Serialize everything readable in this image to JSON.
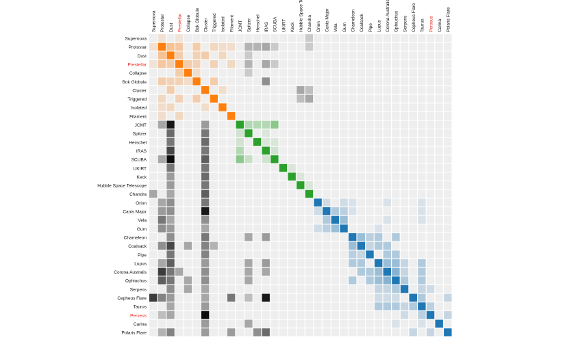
{
  "chart_data": {
    "type": "heatmap",
    "title": "",
    "labels": [
      "Supernova",
      "Protostar",
      "Dust",
      "Prestellar",
      "Collapse",
      "Bok Globule",
      "Cluster",
      "Triggered",
      "Isolated",
      "Filament",
      "JCMT",
      "Spitzer",
      "Herschel",
      "IRAS",
      "SCUBA",
      "UKIRT",
      "Keck",
      "Hubble Space Telescope",
      "Chandra",
      "Orion",
      "Canis Major",
      "Vela",
      "Gum",
      "Chameleon",
      "Coalsack",
      "Pipe",
      "Lupus",
      "Corona Australis",
      "Ophiuchus",
      "Serpens",
      "Cepheus Flare",
      "Taurus",
      "Perseus",
      "Carina",
      "Polaris Flare"
    ],
    "highlighted_labels": [
      "Prestellar",
      "Perseus"
    ],
    "groups": [
      {
        "members": [
          0,
          1,
          2,
          3,
          4,
          5,
          6,
          7,
          8,
          9
        ],
        "color": "#ff7f0e"
      },
      {
        "members": [
          10,
          11,
          12,
          13,
          14,
          15,
          16,
          17,
          18
        ],
        "color": "#2ca02c"
      },
      {
        "members": [
          19,
          20,
          21,
          22,
          23,
          24,
          25,
          26,
          27,
          28,
          29,
          30,
          31,
          32,
          33,
          34
        ],
        "color": "#1f77b4"
      }
    ],
    "other_color": "#000000",
    "empty_color": "#eeeeee",
    "max_intensity": 1,
    "cells": [
      [
        1,
        1,
        1
      ],
      [
        2,
        2,
        1
      ],
      [
        3,
        3,
        1
      ],
      [
        4,
        4,
        1
      ],
      [
        5,
        5,
        1
      ],
      [
        6,
        6,
        1
      ],
      [
        7,
        7,
        1
      ],
      [
        8,
        8,
        1
      ],
      [
        9,
        9,
        1
      ],
      [
        10,
        10,
        1
      ],
      [
        11,
        11,
        1
      ],
      [
        12,
        12,
        1
      ],
      [
        13,
        13,
        1
      ],
      [
        14,
        14,
        1
      ],
      [
        15,
        15,
        1
      ],
      [
        16,
        16,
        1
      ],
      [
        17,
        17,
        1
      ],
      [
        18,
        18,
        1
      ],
      [
        19,
        19,
        1
      ],
      [
        20,
        20,
        1
      ],
      [
        21,
        21,
        1
      ],
      [
        22,
        22,
        1
      ],
      [
        23,
        23,
        1
      ],
      [
        24,
        24,
        1
      ],
      [
        25,
        25,
        1
      ],
      [
        26,
        26,
        1
      ],
      [
        27,
        27,
        1
      ],
      [
        28,
        28,
        1
      ],
      [
        29,
        29,
        1
      ],
      [
        30,
        30,
        1
      ],
      [
        31,
        31,
        1
      ],
      [
        32,
        32,
        1
      ],
      [
        33,
        33,
        1
      ],
      [
        34,
        34,
        1
      ],
      [
        1,
        2,
        0.4
      ],
      [
        2,
        1,
        0.4
      ],
      [
        3,
        1,
        0.35
      ],
      [
        1,
        3,
        0.35
      ],
      [
        3,
        2,
        0.3
      ],
      [
        2,
        3,
        0.3
      ],
      [
        3,
        4,
        0.3
      ],
      [
        4,
        3,
        0.3
      ],
      [
        3,
        5,
        0.25
      ],
      [
        5,
        3,
        0.25
      ],
      [
        5,
        1,
        0.3
      ],
      [
        1,
        5,
        0.3
      ],
      [
        5,
        2,
        0.25
      ],
      [
        2,
        5,
        0.25
      ],
      [
        5,
        7,
        0.3
      ],
      [
        7,
        5,
        0.3
      ],
      [
        5,
        4,
        0.15
      ],
      [
        4,
        5,
        0.15
      ],
      [
        6,
        2,
        0.3
      ],
      [
        2,
        6,
        0.3
      ],
      [
        7,
        3,
        0.25
      ],
      [
        3,
        7,
        0.25
      ],
      [
        8,
        2,
        0.2
      ],
      [
        2,
        8,
        0.2
      ],
      [
        9,
        3,
        0.2
      ],
      [
        3,
        9,
        0.2
      ],
      [
        7,
        1,
        0.2
      ],
      [
        1,
        7,
        0.2
      ],
      [
        8,
        1,
        0.15
      ],
      [
        1,
        8,
        0.15
      ],
      [
        9,
        1,
        0.15
      ],
      [
        1,
        9,
        0.15
      ],
      [
        8,
        6,
        0.15
      ],
      [
        6,
        8,
        0.15
      ],
      [
        0,
        1,
        0.12
      ],
      [
        1,
        0,
        0.12
      ],
      [
        0,
        3,
        0.1
      ],
      [
        3,
        0,
        0.1
      ],
      [
        1,
        11,
        0.25
      ],
      [
        1,
        12,
        0.25
      ],
      [
        1,
        13,
        0.3
      ],
      [
        3,
        11,
        0.25
      ],
      [
        3,
        13,
        0.3
      ],
      [
        5,
        13,
        0.4
      ],
      [
        2,
        11,
        0.15
      ],
      [
        4,
        11,
        0.15
      ],
      [
        1,
        14,
        0.15
      ],
      [
        3,
        14,
        0.15
      ],
      [
        7,
        18,
        0.3
      ],
      [
        6,
        17,
        0.3
      ],
      [
        7,
        17,
        0.2
      ],
      [
        0,
        18,
        0.15
      ],
      [
        1,
        18,
        0.15
      ],
      [
        6,
        18,
        0.2
      ],
      [
        10,
        2,
        0.9
      ],
      [
        10,
        1,
        0.3
      ],
      [
        10,
        6,
        0.35
      ],
      [
        11,
        2,
        0.55
      ],
      [
        11,
        6,
        0.5
      ],
      [
        12,
        2,
        0.5
      ],
      [
        12,
        6,
        0.55
      ],
      [
        13,
        2,
        0.7
      ],
      [
        13,
        6,
        0.5
      ],
      [
        14,
        2,
        0.95
      ],
      [
        14,
        6,
        0.6
      ],
      [
        14,
        1,
        0.3
      ],
      [
        15,
        2,
        0.5
      ],
      [
        15,
        6,
        0.5
      ],
      [
        16,
        2,
        0.35
      ],
      [
        16,
        6,
        0.55
      ],
      [
        17,
        2,
        0.35
      ],
      [
        17,
        6,
        0.5
      ],
      [
        18,
        0,
        0.3
      ],
      [
        18,
        2,
        0.3
      ],
      [
        18,
        6,
        0.6
      ],
      [
        10,
        12,
        0.3
      ],
      [
        10,
        13,
        0.3
      ],
      [
        10,
        14,
        0.5
      ],
      [
        12,
        10,
        0.15
      ],
      [
        13,
        10,
        0.3
      ],
      [
        14,
        10,
        0.5
      ],
      [
        14,
        11,
        0.2
      ],
      [
        14,
        13,
        0.15
      ],
      [
        11,
        10,
        0.15
      ],
      [
        10,
        11,
        0.3
      ],
      [
        12,
        14,
        0.1
      ],
      [
        13,
        14,
        0.15
      ],
      [
        15,
        16,
        0.1
      ],
      [
        16,
        17,
        0.1
      ],
      [
        17,
        18,
        0.1
      ],
      [
        11,
        13,
        0.1
      ],
      [
        12,
        13,
        0.1
      ],
      [
        19,
        1,
        0.3
      ],
      [
        19,
        2,
        0.4
      ],
      [
        19,
        6,
        0.5
      ],
      [
        20,
        1,
        0.35
      ],
      [
        20,
        2,
        0.4
      ],
      [
        20,
        6,
        0.9
      ],
      [
        21,
        1,
        0.5
      ],
      [
        21,
        2,
        0.3
      ],
      [
        21,
        6,
        0.4
      ],
      [
        22,
        1,
        0.4
      ],
      [
        22,
        2,
        0.35
      ],
      [
        22,
        6,
        0.3
      ],
      [
        23,
        2,
        0.4
      ],
      [
        23,
        6,
        0.5
      ],
      [
        23,
        11,
        0.3
      ],
      [
        23,
        13,
        0.35
      ],
      [
        24,
        1,
        0.4
      ],
      [
        24,
        2,
        0.7
      ],
      [
        24,
        6,
        0.45
      ],
      [
        24,
        4,
        0.3
      ],
      [
        24,
        7,
        0.25
      ],
      [
        25,
        2,
        0.5
      ],
      [
        25,
        6,
        0.45
      ],
      [
        26,
        1,
        0.3
      ],
      [
        26,
        2,
        0.6
      ],
      [
        26,
        6,
        0.35
      ],
      [
        26,
        11,
        0.3
      ],
      [
        26,
        13,
        0.35
      ],
      [
        27,
        1,
        0.75
      ],
      [
        27,
        2,
        0.5
      ],
      [
        27,
        3,
        0.3
      ],
      [
        27,
        6,
        0.4
      ],
      [
        27,
        11,
        0.3
      ],
      [
        27,
        13,
        0.3
      ],
      [
        28,
        1,
        0.6
      ],
      [
        28,
        2,
        0.5
      ],
      [
        28,
        4,
        0.3
      ],
      [
        28,
        6,
        0.4
      ],
      [
        28,
        11,
        0.3
      ],
      [
        29,
        2,
        0.4
      ],
      [
        29,
        4,
        0.3
      ],
      [
        29,
        6,
        0.3
      ],
      [
        30,
        0,
        0.75
      ],
      [
        30,
        1,
        0.45
      ],
      [
        30,
        2,
        0.35
      ],
      [
        30,
        9,
        0.5
      ],
      [
        30,
        13,
        0.9
      ],
      [
        30,
        6,
        0.3
      ],
      [
        30,
        11,
        0.2
      ],
      [
        31,
        6,
        0.35
      ],
      [
        31,
        2,
        0.3
      ],
      [
        32,
        6,
        0.95
      ],
      [
        32,
        2,
        0.3
      ],
      [
        32,
        1,
        0.2
      ],
      [
        33,
        6,
        0.35
      ],
      [
        33,
        11,
        0.3
      ],
      [
        34,
        1,
        0.25
      ],
      [
        34,
        2,
        0.45
      ],
      [
        34,
        6,
        0.35
      ],
      [
        34,
        13,
        0.55
      ],
      [
        34,
        12,
        0.4
      ],
      [
        34,
        9,
        0.35
      ],
      [
        19,
        20,
        0.15
      ],
      [
        20,
        19,
        0.15
      ],
      [
        20,
        21,
        0.3
      ],
      [
        21,
        20,
        0.3
      ],
      [
        20,
        22,
        0.25
      ],
      [
        22,
        20,
        0.25
      ],
      [
        21,
        22,
        0.4
      ],
      [
        22,
        21,
        0.4
      ],
      [
        19,
        22,
        0.15
      ],
      [
        22,
        19,
        0.15
      ],
      [
        23,
        24,
        0.4
      ],
      [
        24,
        23,
        0.4
      ],
      [
        23,
        25,
        0.25
      ],
      [
        25,
        23,
        0.25
      ],
      [
        23,
        26,
        0.3
      ],
      [
        26,
        23,
        0.3
      ],
      [
        23,
        28,
        0.3
      ],
      [
        28,
        23,
        0.3
      ],
      [
        24,
        26,
        0.3
      ],
      [
        26,
        24,
        0.3
      ],
      [
        24,
        27,
        0.3
      ],
      [
        27,
        24,
        0.3
      ],
      [
        26,
        27,
        0.4
      ],
      [
        27,
        26,
        0.4
      ],
      [
        26,
        28,
        0.4
      ],
      [
        28,
        26,
        0.4
      ],
      [
        27,
        28,
        0.5
      ],
      [
        28,
        27,
        0.5
      ],
      [
        25,
        27,
        0.3
      ],
      [
        27,
        25,
        0.3
      ],
      [
        25,
        28,
        0.3
      ],
      [
        28,
        25,
        0.3
      ],
      [
        28,
        29,
        0.3
      ],
      [
        29,
        28,
        0.3
      ],
      [
        27,
        29,
        0.2
      ],
      [
        29,
        27,
        0.2
      ],
      [
        26,
        29,
        0.2
      ],
      [
        29,
        26,
        0.2
      ],
      [
        24,
        25,
        0.2
      ],
      [
        25,
        24,
        0.2
      ],
      [
        30,
        31,
        0.3
      ],
      [
        31,
        30,
        0.3
      ],
      [
        30,
        34,
        0.2
      ],
      [
        34,
        30,
        0.2
      ],
      [
        31,
        32,
        0.25
      ],
      [
        32,
        31,
        0.25
      ],
      [
        31,
        28,
        0.3
      ],
      [
        28,
        31,
        0.3
      ],
      [
        31,
        26,
        0.3
      ],
      [
        26,
        31,
        0.3
      ],
      [
        31,
        27,
        0.3
      ],
      [
        27,
        31,
        0.3
      ],
      [
        32,
        29,
        0.15
      ],
      [
        29,
        32,
        0.15
      ],
      [
        31,
        29,
        0.2
      ],
      [
        29,
        31,
        0.2
      ],
      [
        32,
        34,
        0.2
      ],
      [
        34,
        32,
        0.2
      ],
      [
        19,
        23,
        0.1
      ],
      [
        20,
        23,
        0.1
      ],
      [
        19,
        27,
        0.1
      ],
      [
        21,
        27,
        0.1
      ],
      [
        22,
        26,
        0.1
      ],
      [
        19,
        31,
        0.1
      ],
      [
        20,
        31,
        0.1
      ],
      [
        21,
        31,
        0.1
      ],
      [
        30,
        26,
        0.15
      ],
      [
        30,
        27,
        0.15
      ],
      [
        30,
        28,
        0.15
      ],
      [
        33,
        28,
        0.1
      ],
      [
        33,
        31,
        0.1
      ]
    ]
  }
}
